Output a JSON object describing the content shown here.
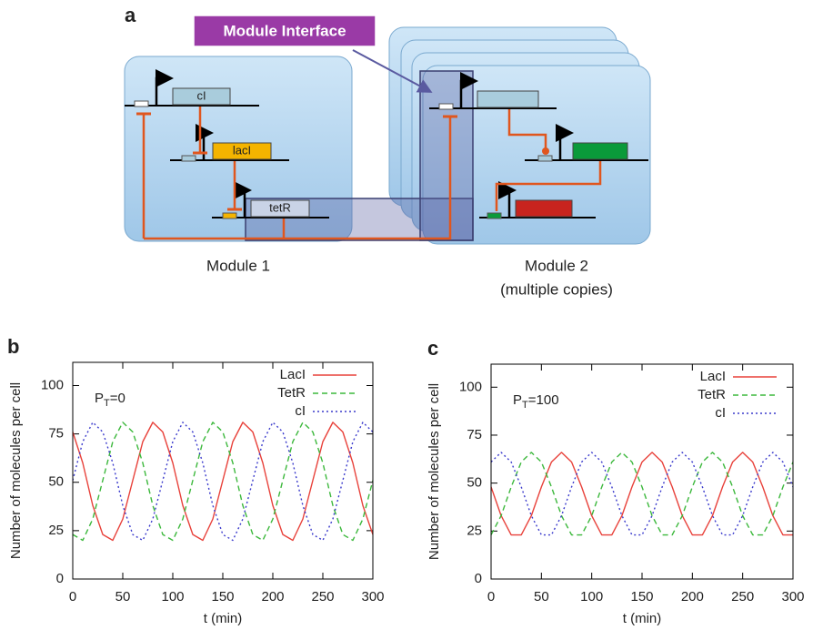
{
  "diagram": {
    "panel": "a",
    "interface": "Module Interface",
    "genes": [
      "cI",
      "lacI",
      "tetR"
    ],
    "module1": "Module 1",
    "module2": [
      "Module 2",
      "(multiple copies)"
    ]
  },
  "chart_data": [
    {
      "type": "line",
      "panel": "b",
      "annotation": {
        "base": "P",
        "sub": "T",
        "rest": "=0"
      },
      "x_label": "t (min)",
      "y_label": "Number of molecules per cell",
      "x": [
        0,
        10,
        20,
        30,
        40,
        50,
        60,
        70,
        80,
        90,
        100,
        110,
        120,
        130,
        140,
        150,
        160,
        170,
        180,
        190,
        200,
        210,
        220,
        230,
        240,
        250,
        260,
        270,
        280,
        290,
        300
      ],
      "series": [
        {
          "name": "LacI",
          "color": "#e8413a",
          "dash": "solid",
          "values": [
            76,
            60,
            38,
            23,
            20,
            31,
            51,
            71,
            81,
            76,
            60,
            38,
            23,
            20,
            31,
            51,
            71,
            81,
            76,
            60,
            38,
            23,
            20,
            31,
            51,
            71,
            81,
            76,
            60,
            38,
            23
          ]
        },
        {
          "name": "TetR",
          "color": "#3cb83c",
          "dash": "dashed",
          "values": [
            23,
            20,
            31,
            51,
            71,
            81,
            76,
            60,
            38,
            23,
            20,
            31,
            51,
            71,
            81,
            76,
            60,
            38,
            23,
            20,
            31,
            51,
            71,
            81,
            76,
            60,
            38,
            23,
            20,
            31,
            51
          ]
        },
        {
          "name": "cI",
          "color": "#3a3acc",
          "dash": "dotted",
          "values": [
            51,
            71,
            81,
            76,
            60,
            38,
            23,
            20,
            31,
            51,
            71,
            81,
            76,
            60,
            38,
            23,
            20,
            31,
            51,
            71,
            81,
            76,
            60,
            38,
            23,
            20,
            31,
            51,
            71,
            81,
            76
          ]
        }
      ],
      "xlim": [
        0,
        300
      ],
      "xticks": [
        0,
        50,
        100,
        150,
        200,
        250,
        300
      ],
      "ylim": [
        0,
        112
      ],
      "yticks": [
        0,
        25,
        50,
        75,
        100
      ],
      "legend": "top-right"
    },
    {
      "type": "line",
      "panel": "c",
      "annotation": {
        "base": "P",
        "sub": "T",
        "rest": "=100"
      },
      "x_label": "t (min)",
      "y_label": "Number of molecules per cell",
      "x": [
        0,
        10,
        20,
        30,
        40,
        50,
        60,
        70,
        80,
        90,
        100,
        110,
        120,
        130,
        140,
        150,
        160,
        170,
        180,
        190,
        200,
        210,
        220,
        230,
        240,
        250,
        260,
        270,
        280,
        290,
        300
      ],
      "series": [
        {
          "name": "LacI",
          "color": "#e8413a",
          "dash": "solid",
          "values": [
            48,
            33,
            23,
            23,
            33,
            48,
            61,
            66,
            61,
            48,
            33,
            23,
            23,
            33,
            48,
            61,
            66,
            61,
            48,
            33,
            23,
            23,
            33,
            48,
            61,
            66,
            61,
            48,
            33,
            23,
            23
          ]
        },
        {
          "name": "TetR",
          "color": "#3cb83c",
          "dash": "dashed",
          "values": [
            23,
            33,
            48,
            61,
            66,
            61,
            48,
            33,
            23,
            23,
            33,
            48,
            61,
            66,
            61,
            48,
            33,
            23,
            23,
            33,
            48,
            61,
            66,
            61,
            48,
            33,
            23,
            23,
            33,
            48,
            61
          ]
        },
        {
          "name": "cI",
          "color": "#3a3acc",
          "dash": "dotted",
          "values": [
            61,
            66,
            61,
            48,
            33,
            23,
            23,
            33,
            48,
            61,
            66,
            61,
            48,
            33,
            23,
            23,
            33,
            48,
            61,
            66,
            61,
            48,
            33,
            23,
            23,
            33,
            48,
            61,
            66,
            61,
            48
          ]
        }
      ],
      "xlim": [
        0,
        300
      ],
      "xticks": [
        0,
        50,
        100,
        150,
        200,
        250,
        300
      ],
      "ylim": [
        0,
        112
      ],
      "yticks": [
        0,
        25,
        50,
        75,
        100
      ],
      "legend": "top-right"
    }
  ]
}
